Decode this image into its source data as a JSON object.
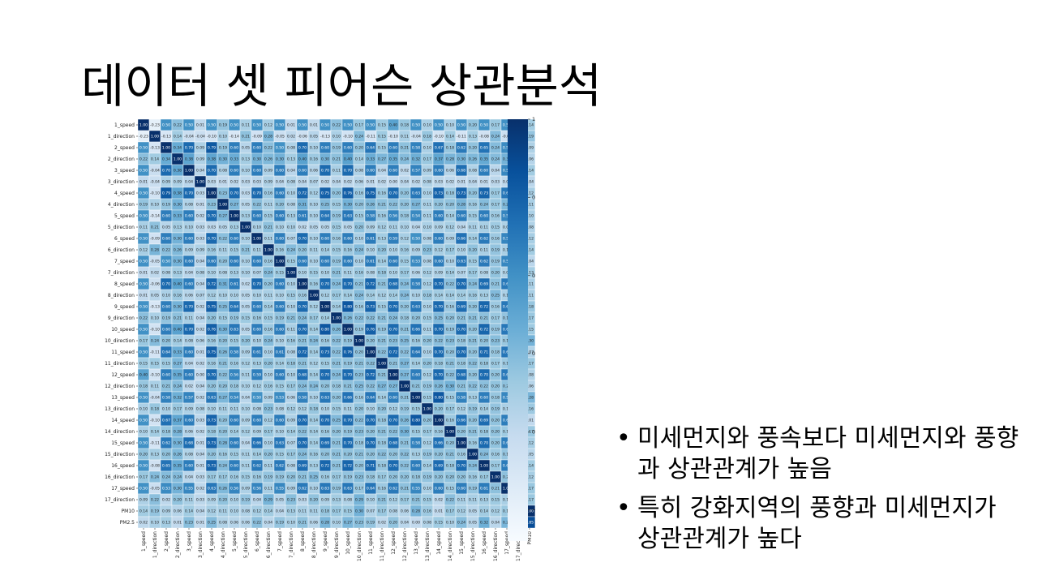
{
  "slide": {
    "title": "데이터 셋 피어슨 상관분석",
    "bullets": [
      "미세먼지와 풍속보다 미세먼지와 풍향과 상관관계가 높음",
      "특히 강화지역의 풍향과 미세먼지가 상관관계가 높다"
    ]
  },
  "chart_data": {
    "type": "heatmap",
    "title": "",
    "xlabel": "",
    "ylabel": "",
    "variables": [
      "1_speed",
      "1_direction",
      "2_speed",
      "2_direction",
      "3_speed",
      "3_direction",
      "4_speed",
      "4_direction",
      "5_speed",
      "5_direction",
      "6_speed",
      "6_direction",
      "7_speed",
      "7_direction",
      "8_speed",
      "8_direction",
      "9_speed",
      "9_direction",
      "10_speed",
      "10_direction",
      "11_speed",
      "11_direction",
      "12_speed",
      "12_direction",
      "13_speed",
      "13_direction",
      "14_speed",
      "14_direction",
      "15_speed",
      "15_direction",
      "16_speed",
      "16_direction",
      "17_speed",
      "17_direction",
      "PM10",
      "PM2.5"
    ],
    "values": [
      [
        1.0,
        -0.23,
        0.5,
        0.22,
        0.5,
        0.01,
        0.5,
        0.19,
        0.5,
        0.11,
        0.5,
        0.12,
        0.5,
        0.01,
        0.5,
        0.01,
        0.5,
        0.22,
        0.5,
        0.17,
        0.5,
        0.15,
        0.4,
        0.18,
        0.5,
        0.1,
        0.5,
        0.1,
        0.5,
        0.2,
        0.5,
        0.17,
        0.5,
        0.09,
        0.14,
        0.02
      ],
      [
        -0.23,
        1.0,
        -0.13,
        0.14,
        -0.04,
        -0.04,
        -0.1,
        0.1,
        -0.14,
        0.21,
        -0.09,
        0.28,
        -0.05,
        0.02,
        -0.06,
        0.05,
        -0.13,
        0.1,
        -0.1,
        0.24,
        -0.11,
        0.15,
        -0.1,
        0.11,
        -0.04,
        0.18,
        -0.1,
        0.14,
        -0.11,
        0.13,
        -0.08,
        0.24,
        -0.05,
        0.22,
        0.19,
        0.1
      ],
      [
        0.5,
        -0.13,
        1.0,
        0.34,
        0.7,
        0.09,
        0.79,
        0.19,
        0.6,
        0.05,
        0.6,
        0.22,
        0.5,
        0.08,
        0.7,
        0.1,
        0.6,
        0.19,
        0.6,
        0.2,
        0.64,
        0.15,
        0.6,
        0.21,
        0.58,
        0.1,
        0.67,
        0.18,
        0.62,
        0.2,
        0.65,
        0.24,
        0.53,
        0.02,
        0.09,
        0.13
      ],
      [
        0.22,
        0.14,
        0.34,
        1.0,
        0.38,
        0.09,
        0.38,
        0.3,
        0.33,
        0.13,
        0.3,
        0.26,
        0.3,
        0.13,
        0.4,
        0.16,
        0.3,
        0.21,
        0.4,
        0.14,
        0.33,
        0.27,
        0.35,
        0.24,
        0.32,
        0.17,
        0.37,
        0.28,
        0.3,
        0.26,
        0.35,
        0.24,
        0.3,
        0.2,
        0.06,
        0.01
      ],
      [
        0.5,
        -0.04,
        0.7,
        0.38,
        1.0,
        0.04,
        0.7,
        0.08,
        0.6,
        0.1,
        0.6,
        0.09,
        0.6,
        0.04,
        0.6,
        0.06,
        0.7,
        0.11,
        0.7,
        0.08,
        0.6,
        0.04,
        0.6,
        0.02,
        0.57,
        0.09,
        0.6,
        0.06,
        0.68,
        0.08,
        0.6,
        0.04,
        0.55,
        0.11,
        0.14,
        0.23
      ],
      [
        0.01,
        -0.04,
        0.09,
        0.09,
        0.04,
        1.0,
        0.03,
        0.01,
        0.02,
        0.03,
        0.03,
        0.09,
        0.04,
        0.08,
        0.04,
        0.07,
        0.02,
        0.04,
        0.02,
        0.06,
        0.01,
        0.02,
        0.0,
        0.04,
        0.02,
        0.08,
        0.03,
        0.02,
        0.01,
        0.04,
        0.01,
        0.03,
        0.02,
        0.03,
        0.04,
        0.01
      ],
      [
        0.5,
        -0.1,
        0.79,
        0.38,
        0.7,
        0.03,
        1.0,
        0.23,
        0.7,
        0.03,
        0.7,
        0.16,
        0.6,
        0.1,
        0.72,
        0.12,
        0.75,
        0.2,
        0.76,
        0.16,
        0.75,
        0.16,
        0.7,
        0.2,
        0.63,
        0.1,
        0.73,
        0.18,
        0.73,
        0.2,
        0.73,
        0.17,
        0.63,
        0.09,
        0.12,
        0.25
      ],
      [
        0.19,
        0.1,
        0.19,
        0.3,
        0.08,
        0.01,
        0.23,
        1.0,
        0.27,
        0.05,
        0.22,
        0.11,
        0.2,
        0.08,
        0.31,
        0.1,
        0.25,
        0.15,
        0.3,
        0.2,
        0.26,
        0.21,
        0.22,
        0.2,
        0.27,
        0.11,
        0.2,
        0.2,
        0.28,
        0.16,
        0.24,
        0.17,
        0.26,
        0.2,
        0.11,
        0.08
      ],
      [
        0.5,
        -0.14,
        0.6,
        0.33,
        0.6,
        0.02,
        0.7,
        0.27,
        1.0,
        0.13,
        0.6,
        0.15,
        0.6,
        0.13,
        0.61,
        0.1,
        0.64,
        0.19,
        0.63,
        0.15,
        0.58,
        0.16,
        0.56,
        0.18,
        0.54,
        0.11,
        0.6,
        0.14,
        0.6,
        0.15,
        0.6,
        0.16,
        0.56,
        0.1,
        0.1,
        0.06
      ],
      [
        0.11,
        0.21,
        0.05,
        0.13,
        0.1,
        0.03,
        0.03,
        0.05,
        0.13,
        1.0,
        0.1,
        0.21,
        0.1,
        0.1,
        0.02,
        0.05,
        0.05,
        0.15,
        0.05,
        0.2,
        0.09,
        0.12,
        0.11,
        0.1,
        0.04,
        0.1,
        0.09,
        0.12,
        0.04,
        0.11,
        0.11,
        0.15,
        0.09,
        0.19,
        0.08,
        0.06
      ],
      [
        0.5,
        -0.09,
        0.6,
        0.3,
        0.6,
        0.03,
        0.7,
        0.22,
        0.6,
        0.1,
        1.0,
        0.11,
        0.6,
        0.07,
        0.7,
        0.1,
        0.6,
        0.16,
        0.6,
        0.1,
        0.61,
        0.13,
        0.59,
        0.12,
        0.5,
        0.08,
        0.6,
        0.09,
        0.66,
        0.14,
        0.62,
        0.16,
        0.56,
        0.04,
        0.12,
        0.22
      ],
      [
        0.12,
        0.28,
        0.22,
        0.26,
        0.09,
        0.09,
        0.16,
        0.11,
        0.15,
        0.21,
        0.11,
        1.0,
        0.16,
        0.24,
        0.2,
        0.11,
        0.14,
        0.15,
        0.16,
        0.24,
        0.1,
        0.2,
        0.1,
        0.16,
        0.09,
        0.23,
        0.12,
        0.17,
        0.1,
        0.2,
        0.11,
        0.19,
        0.11,
        0.29,
        0.14,
        0.04
      ],
      [
        0.5,
        -0.05,
        0.5,
        0.3,
        0.6,
        0.04,
        0.6,
        0.2,
        0.6,
        0.1,
        0.6,
        0.16,
        1.0,
        0.15,
        0.6,
        0.1,
        0.6,
        0.19,
        0.6,
        0.1,
        0.61,
        0.14,
        0.6,
        0.15,
        0.53,
        0.08,
        0.6,
        0.1,
        0.63,
        0.15,
        0.62,
        0.19,
        0.55,
        0.05,
        0.04,
        0.19
      ],
      [
        0.01,
        0.02,
        0.08,
        0.13,
        0.04,
        0.08,
        0.1,
        0.08,
        0.13,
        0.1,
        0.07,
        0.24,
        0.15,
        1.0,
        0.1,
        0.15,
        0.1,
        0.21,
        0.11,
        0.16,
        0.08,
        0.18,
        0.1,
        0.17,
        0.06,
        0.12,
        0.09,
        0.14,
        0.07,
        0.17,
        0.08,
        0.2,
        0.09,
        0.23,
        0.13,
        0.1
      ],
      [
        0.5,
        -0.06,
        0.7,
        0.4,
        0.6,
        0.04,
        0.72,
        0.31,
        0.61,
        0.02,
        0.7,
        0.2,
        0.6,
        0.1,
        1.0,
        0.16,
        0.7,
        0.24,
        0.7,
        0.21,
        0.72,
        0.21,
        0.68,
        0.24,
        0.58,
        0.12,
        0.7,
        0.22,
        0.7,
        0.24,
        0.69,
        0.21,
        0.62,
        0.03,
        0.11,
        0.21
      ],
      [
        0.01,
        0.05,
        0.1,
        0.16,
        0.06,
        0.07,
        0.12,
        0.1,
        0.1,
        0.05,
        0.1,
        0.11,
        0.1,
        0.15,
        0.16,
        1.0,
        0.12,
        0.17,
        0.14,
        0.24,
        0.14,
        0.12,
        0.14,
        0.24,
        0.1,
        0.18,
        0.14,
        0.14,
        0.14,
        0.16,
        0.13,
        0.25,
        0.1,
        0.2,
        0.11,
        0.06
      ],
      [
        0.5,
        -0.13,
        0.6,
        0.3,
        0.7,
        0.02,
        0.75,
        0.25,
        0.64,
        0.05,
        0.6,
        0.14,
        0.6,
        0.1,
        0.7,
        0.12,
        1.0,
        0.14,
        0.8,
        0.16,
        0.73,
        0.15,
        0.7,
        0.2,
        0.63,
        0.1,
        0.7,
        0.16,
        0.69,
        0.2,
        0.72,
        0.16,
        0.63,
        0.09,
        0.18,
        0.28
      ],
      [
        0.22,
        0.1,
        0.19,
        0.21,
        0.11,
        0.04,
        0.2,
        0.15,
        0.19,
        0.15,
        0.16,
        0.15,
        0.19,
        0.21,
        0.24,
        0.17,
        0.14,
        1.0,
        0.26,
        0.22,
        0.22,
        0.21,
        0.24,
        0.18,
        0.2,
        0.15,
        0.25,
        0.2,
        0.21,
        0.21,
        0.21,
        0.17,
        0.19,
        0.13,
        0.17,
        0.1
      ],
      [
        0.5,
        -0.1,
        0.6,
        0.4,
        0.7,
        0.02,
        0.76,
        0.3,
        0.63,
        0.05,
        0.6,
        0.16,
        0.6,
        0.11,
        0.7,
        0.14,
        0.8,
        0.26,
        1.0,
        0.19,
        0.76,
        0.19,
        0.7,
        0.21,
        0.66,
        0.11,
        0.7,
        0.19,
        0.7,
        0.2,
        0.72,
        0.19,
        0.63,
        0.08,
        0.15,
        0.27
      ],
      [
        0.17,
        0.24,
        0.2,
        0.14,
        0.08,
        0.06,
        0.16,
        0.2,
        0.15,
        0.2,
        0.1,
        0.24,
        0.1,
        0.16,
        0.21,
        0.24,
        0.16,
        0.22,
        0.19,
        1.0,
        0.2,
        0.21,
        0.23,
        0.25,
        0.16,
        0.2,
        0.22,
        0.23,
        0.18,
        0.21,
        0.2,
        0.23,
        0.17,
        0.29,
        0.3,
        0.23
      ],
      [
        0.5,
        -0.11,
        0.64,
        0.33,
        0.6,
        0.01,
        0.75,
        0.26,
        0.58,
        0.09,
        0.61,
        0.1,
        0.61,
        0.08,
        0.72,
        0.14,
        0.73,
        0.22,
        0.76,
        0.2,
        1.0,
        0.22,
        0.72,
        0.22,
        0.64,
        0.1,
        0.7,
        0.2,
        0.7,
        0.2,
        0.71,
        0.18,
        0.64,
        0.1,
        0.07,
        0.19
      ],
      [
        0.15,
        0.15,
        0.15,
        0.27,
        0.04,
        0.02,
        0.16,
        0.21,
        0.16,
        0.12,
        0.13,
        0.2,
        0.14,
        0.18,
        0.21,
        0.12,
        0.15,
        0.21,
        0.19,
        0.21,
        0.22,
        1.0,
        0.21,
        0.27,
        0.14,
        0.2,
        0.18,
        0.21,
        0.18,
        0.22,
        0.18,
        0.17,
        0.16,
        0.21,
        0.17,
        0.02
      ],
      [
        0.4,
        -0.1,
        0.6,
        0.35,
        0.6,
        0.0,
        0.7,
        0.22,
        0.56,
        0.11,
        0.59,
        0.1,
        0.6,
        0.1,
        0.68,
        0.14,
        0.7,
        0.24,
        0.7,
        0.23,
        0.72,
        0.21,
        1.0,
        0.27,
        0.6,
        0.12,
        0.7,
        0.22,
        0.68,
        0.2,
        0.7,
        0.2,
        0.62,
        0.12,
        0.08,
        0.2
      ],
      [
        0.18,
        0.11,
        0.21,
        0.24,
        0.02,
        0.04,
        0.2,
        0.2,
        0.18,
        0.1,
        0.12,
        0.16,
        0.15,
        0.17,
        0.24,
        0.24,
        0.2,
        0.18,
        0.21,
        0.25,
        0.22,
        0.27,
        0.27,
        1.0,
        0.21,
        0.19,
        0.26,
        0.3,
        0.21,
        0.22,
        0.22,
        0.2,
        0.21,
        0.17,
        0.06,
        0.04
      ],
      [
        0.5,
        -0.04,
        0.58,
        0.32,
        0.57,
        0.02,
        0.63,
        0.27,
        0.54,
        0.04,
        0.5,
        0.09,
        0.53,
        0.06,
        0.58,
        0.1,
        0.63,
        0.2,
        0.66,
        0.16,
        0.64,
        0.14,
        0.6,
        0.21,
        1.0,
        0.15,
        0.8,
        0.15,
        0.58,
        0.13,
        0.6,
        0.18,
        0.55,
        0.21,
        0.28,
        0.0
      ],
      [
        0.1,
        0.18,
        0.1,
        0.17,
        0.09,
        0.08,
        0.1,
        0.11,
        0.11,
        0.1,
        0.08,
        0.23,
        0.08,
        0.12,
        0.12,
        0.18,
        0.1,
        0.15,
        0.11,
        0.2,
        0.1,
        0.2,
        0.12,
        0.19,
        0.15,
        1.0,
        0.2,
        0.17,
        0.12,
        0.19,
        0.14,
        0.19,
        0.1,
        0.15,
        0.16,
        0.08
      ],
      [
        0.5,
        -0.1,
        0.67,
        0.37,
        0.6,
        0.03,
        0.73,
        0.2,
        0.6,
        0.09,
        0.6,
        0.12,
        0.6,
        0.09,
        0.7,
        0.14,
        0.7,
        0.25,
        0.7,
        0.22,
        0.7,
        0.18,
        0.7,
        0.26,
        0.8,
        0.2,
        1.0,
        0.16,
        0.66,
        0.2,
        0.69,
        0.2,
        0.6,
        0.02,
        0.01,
        0.15
      ],
      [
        0.1,
        0.14,
        0.18,
        0.28,
        0.06,
        0.02,
        0.18,
        0.2,
        0.14,
        0.12,
        0.09,
        0.17,
        0.1,
        0.14,
        0.22,
        0.14,
        0.16,
        0.2,
        0.19,
        0.23,
        0.2,
        0.21,
        0.22,
        0.3,
        0.15,
        0.17,
        0.16,
        1.0,
        0.2,
        0.21,
        0.18,
        0.2,
        0.15,
        0.22,
        0.17,
        0.1
      ],
      [
        0.5,
        -0.11,
        0.62,
        0.3,
        0.68,
        0.01,
        0.73,
        0.28,
        0.6,
        0.04,
        0.66,
        0.1,
        0.63,
        0.07,
        0.7,
        0.14,
        0.69,
        0.21,
        0.7,
        0.18,
        0.7,
        0.18,
        0.68,
        0.21,
        0.58,
        0.12,
        0.66,
        0.2,
        1.0,
        0.16,
        0.7,
        0.2,
        0.6,
        0.11,
        0.12,
        0.24
      ],
      [
        0.2,
        0.13,
        0.2,
        0.26,
        0.08,
        0.04,
        0.2,
        0.16,
        0.15,
        0.11,
        0.14,
        0.2,
        0.15,
        0.17,
        0.24,
        0.16,
        0.2,
        0.21,
        0.2,
        0.21,
        0.2,
        0.22,
        0.2,
        0.22,
        0.13,
        0.19,
        0.2,
        0.21,
        0.16,
        1.0,
        0.24,
        0.16,
        0.19,
        0.11,
        0.05,
        0.05
      ],
      [
        0.5,
        -0.08,
        0.65,
        0.35,
        0.6,
        0.01,
        0.73,
        0.24,
        0.6,
        0.11,
        0.62,
        0.11,
        0.62,
        0.08,
        0.69,
        0.13,
        0.72,
        0.21,
        0.72,
        0.2,
        0.71,
        0.18,
        0.7,
        0.22,
        0.6,
        0.14,
        0.69,
        0.18,
        0.7,
        0.24,
        1.0,
        0.17,
        0.61,
        0.13,
        0.14,
        0.32
      ],
      [
        0.17,
        0.24,
        0.24,
        0.24,
        0.04,
        0.03,
        0.17,
        0.17,
        0.16,
        0.15,
        0.16,
        0.19,
        0.19,
        0.2,
        0.21,
        0.25,
        0.16,
        0.17,
        0.19,
        0.23,
        0.18,
        0.17,
        0.2,
        0.2,
        0.18,
        0.19,
        0.2,
        0.2,
        0.2,
        0.16,
        0.17,
        1.0,
        0.21,
        0.15,
        0.12,
        0.04
      ],
      [
        0.5,
        -0.05,
        0.53,
        0.3,
        0.55,
        0.02,
        0.63,
        0.26,
        0.56,
        0.09,
        0.56,
        0.11,
        0.55,
        0.09,
        0.62,
        0.1,
        0.63,
        0.19,
        0.63,
        0.17,
        0.64,
        0.16,
        0.62,
        0.21,
        0.55,
        0.1,
        0.6,
        0.15,
        0.6,
        0.19,
        0.61,
        0.21,
        1.0,
        0.11,
        0.17,
        0.28
      ],
      [
        0.09,
        0.22,
        0.02,
        0.2,
        0.11,
        0.03,
        0.09,
        0.2,
        0.1,
        0.19,
        0.04,
        0.29,
        0.05,
        0.23,
        0.03,
        0.2,
        0.09,
        0.13,
        0.08,
        0.29,
        0.1,
        0.21,
        0.12,
        0.17,
        0.21,
        0.15,
        0.02,
        0.22,
        0.11,
        0.11,
        0.13,
        0.15,
        0.11,
        1.0,
        0.17,
        0.06
      ],
      [
        0.14,
        0.19,
        0.09,
        0.06,
        0.14,
        0.04,
        0.12,
        0.11,
        0.1,
        0.08,
        0.12,
        0.14,
        0.04,
        0.13,
        0.11,
        0.11,
        0.18,
        0.17,
        0.15,
        0.3,
        0.07,
        0.17,
        0.08,
        0.06,
        0.28,
        0.16,
        0.01,
        0.17,
        0.12,
        0.05,
        0.14,
        0.12,
        0.17,
        0.17,
        1.0,
        0.85
      ],
      [
        0.02,
        0.1,
        0.13,
        0.01,
        0.23,
        0.01,
        0.25,
        0.08,
        0.06,
        0.06,
        0.22,
        0.04,
        0.19,
        0.1,
        0.21,
        0.06,
        0.28,
        0.1,
        0.27,
        0.23,
        0.19,
        0.02,
        0.2,
        0.04,
        0.0,
        0.08,
        0.15,
        0.1,
        0.24,
        0.05,
        0.32,
        0.04,
        0.28,
        0.06,
        0.85,
        1.0
      ]
    ],
    "colorbar": {
      "min": -0.35,
      "max": 1.0,
      "ticks": [
        1.0,
        0.75,
        0.5,
        0.25,
        0.0,
        -0.25
      ],
      "tick_labels": [
        "1.00",
        "0.75",
        "0.50",
        "0.25",
        "0.00",
        "−0.25"
      ],
      "colormap": "Blues",
      "low_color": "#f7fbff",
      "high_color": "#08306b"
    },
    "grid": false,
    "legend": "right"
  }
}
